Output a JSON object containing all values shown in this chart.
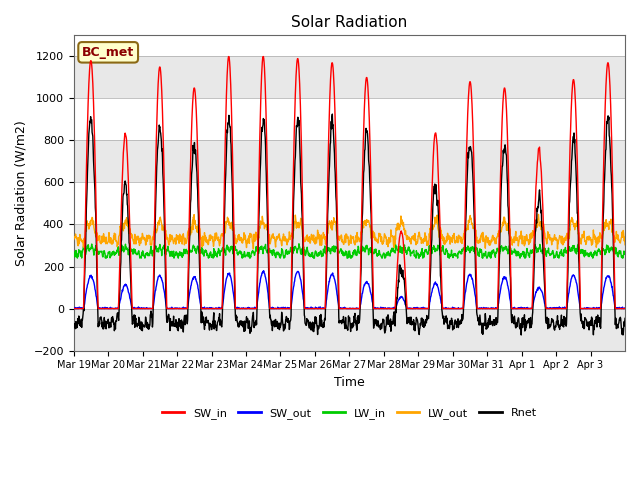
{
  "title": "Solar Radiation",
  "ylabel": "Solar Radiation (W/m2)",
  "xlabel": "Time",
  "ylim": [
    -200,
    1300
  ],
  "yticks": [
    -200,
    0,
    200,
    400,
    600,
    800,
    1000,
    1200
  ],
  "annotation": "BC_met",
  "colors": {
    "SW_in": "#ff0000",
    "SW_out": "#0000ff",
    "LW_in": "#00cc00",
    "LW_out": "#ffa500",
    "Rnet": "#000000"
  },
  "legend_labels": [
    "SW_in",
    "SW_out",
    "LW_in",
    "LW_out",
    "Rnet"
  ],
  "n_days": 16,
  "dt_minutes": 15,
  "tick_labels": [
    "Mar 19",
    "Mar 20",
    "Mar 21",
    "Mar 22",
    "Mar 23",
    "Mar 24",
    "Mar 25",
    "Mar 26",
    "Mar 27",
    "Mar 28",
    "Mar 29",
    "Mar 30",
    "Mar 31",
    "Apr 1",
    "Apr 2",
    "Apr 3"
  ],
  "figsize": [
    6.4,
    4.8
  ],
  "dpi": 100,
  "band_colors": [
    "#e8e8e8",
    "#ffffff"
  ],
  "band_ranges": [
    [
      -200,
      0
    ],
    [
      0,
      200
    ],
    [
      200,
      400
    ],
    [
      400,
      600
    ],
    [
      600,
      800
    ],
    [
      800,
      1000
    ],
    [
      1000,
      1200
    ],
    [
      1200,
      1400
    ]
  ],
  "annotation_color": "#8b0000",
  "annotation_bg": "#ffffcc",
  "annotation_edge": "#8b6914"
}
